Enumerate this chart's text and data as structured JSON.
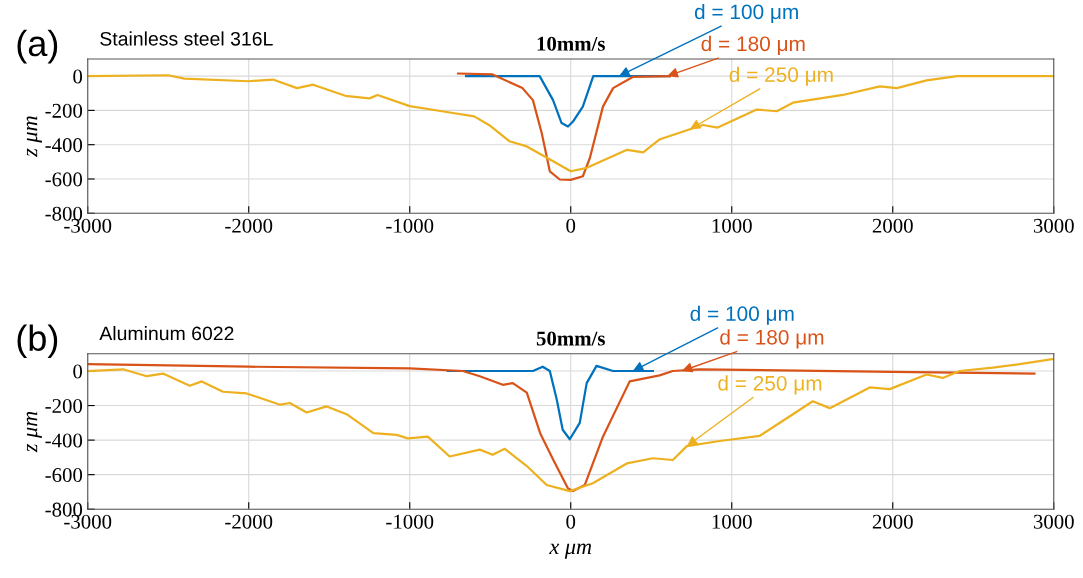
{
  "chart_data": [
    {
      "type": "line",
      "title": "10mm/s",
      "ylabel": "z μm",
      "xlim": [
        -3000,
        3000
      ],
      "ylim": [
        -800,
        100
      ],
      "xticks": [
        -3000,
        -2000,
        -1000,
        0,
        1000,
        2000,
        3000
      ],
      "yticks": [
        -800,
        -600,
        -400,
        -200,
        0
      ],
      "grid": true,
      "line_style": "solid",
      "annotations": [
        "(a)",
        "Stainless steel 316L",
        {
          "text": "d = 100 μm",
          "x": 300,
          "y": 0
        },
        {
          "text": "d = 180 μm",
          "x": 600,
          "y": 0
        },
        {
          "text": "d = 250 μm",
          "x": 740,
          "y": -310
        }
      ],
      "series": [
        {
          "color": "#0072bd",
          "x": [
            -650,
            -193,
            -110,
            -57,
            -17,
            14,
            75,
            140,
            180,
            615
          ],
          "values": [
            0,
            0,
            -140,
            -274,
            -294,
            -265,
            -178,
            0,
            0,
            0
          ]
        },
        {
          "color": "#d95319",
          "x": [
            -700,
            -485,
            -300,
            -235,
            -180,
            -130,
            -68,
            0,
            75,
            118,
            200,
            263,
            385,
            615
          ],
          "values": [
            15,
            10,
            -70,
            -140,
            -333,
            -555,
            -603,
            -605,
            -584,
            -480,
            -178,
            -70,
            -5,
            0
          ]
        },
        {
          "color": "#edb120",
          "x": [
            -3000,
            -2500,
            -2400,
            -2000,
            -1850,
            -1700,
            -1600,
            -1400,
            -1250,
            -1200,
            -1000,
            -800,
            -600,
            -500,
            -380,
            -273,
            -112,
            0,
            100,
            350,
            450,
            550,
            820,
            913,
            1155,
            1280,
            1380,
            1690,
            1920,
            2025,
            2210,
            2400,
            3000
          ],
          "values": [
            0,
            5,
            -15,
            -30,
            -20,
            -70,
            -50,
            -115,
            -130,
            -110,
            -175,
            -205,
            -235,
            -290,
            -380,
            -410,
            -495,
            -555,
            -535,
            -430,
            -445,
            -370,
            -285,
            -300,
            -195,
            -205,
            -155,
            -110,
            -60,
            -70,
            -25,
            0,
            0
          ]
        }
      ]
    },
    {
      "type": "line",
      "title": "50mm/s",
      "xlabel": "x μm",
      "ylabel": "z μm",
      "xlim": [
        -3000,
        3000
      ],
      "ylim": [
        -800,
        100
      ],
      "xticks": [
        -3000,
        -2000,
        -1000,
        0,
        1000,
        2000,
        3000
      ],
      "yticks": [
        -800,
        -600,
        -400,
        -200,
        0
      ],
      "grid": true,
      "line_style": "solid",
      "annotations": [
        "(b)",
        "Aluminum 6022",
        {
          "text": "d = 100 μm",
          "x": 385,
          "y": 0
        },
        {
          "text": "d = 180 μm",
          "x": 690,
          "y": 0
        },
        {
          "text": "d = 250 μm",
          "x": 721,
          "y": -435
        }
      ],
      "series": [
        {
          "color": "#0072bd",
          "x": [
            -764,
            -235,
            -174,
            -130,
            -87,
            -50,
            -6,
            56,
            99,
            160,
            263,
            510
          ],
          "values": [
            0,
            0,
            25,
            0,
            -165,
            -340,
            -395,
            -300,
            -70,
            30,
            0,
            0
          ]
        },
        {
          "color": "#d95319",
          "x": [
            -3000,
            -2000,
            -1000,
            -670,
            -565,
            -422,
            -360,
            -273,
            -190,
            -108,
            -17,
            14,
            87,
            200,
            366,
            552,
            634,
            800,
            2000,
            2880
          ],
          "values": [
            40,
            25,
            15,
            0,
            -30,
            -80,
            -70,
            -125,
            -360,
            -515,
            -680,
            -695,
            -660,
            -380,
            -60,
            -25,
            0,
            10,
            -5,
            -15
          ]
        },
        {
          "color": "#edb120",
          "x": [
            -3000,
            -2780,
            -2633,
            -2533,
            -2366,
            -2292,
            -2160,
            -2013,
            -1805,
            -1745,
            -1640,
            -1516,
            -1392,
            -1226,
            -1081,
            -1012,
            -888,
            -752,
            -565,
            -485,
            -410,
            -273,
            -149,
            -6,
            137,
            348,
            510,
            634,
            721,
            925,
            1174,
            1380,
            1503,
            1609,
            1857,
            1981,
            2210,
            2310,
            2416,
            2621,
            2789,
            3000
          ],
          "values": [
            0,
            10,
            -30,
            -15,
            -85,
            -60,
            -120,
            -130,
            -195,
            -185,
            -240,
            -205,
            -250,
            -360,
            -370,
            -390,
            -380,
            -495,
            -455,
            -485,
            -450,
            -550,
            -660,
            -695,
            -650,
            -535,
            -505,
            -515,
            -435,
            -405,
            -375,
            -250,
            -175,
            -215,
            -95,
            -105,
            -20,
            -40,
            0,
            20,
            40,
            70
          ]
        }
      ]
    }
  ]
}
